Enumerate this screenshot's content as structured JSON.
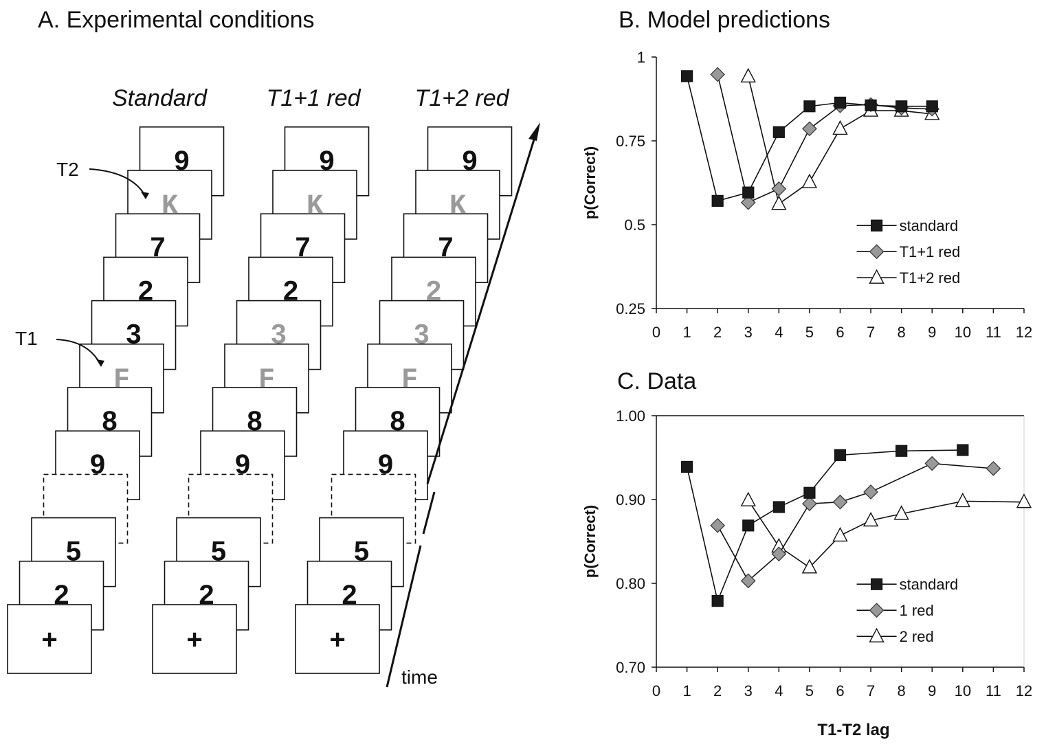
{
  "panelA": {
    "title": "A. Experimental conditions",
    "conditions": [
      "Standard",
      "T1+1 red",
      "T1+2 red"
    ],
    "t1_label": "T1",
    "t2_label": "T2",
    "time_label": "time",
    "fixation": "+",
    "stream_standard": [
      {
        "ch": "9",
        "c": "#111111"
      },
      {
        "ch": "K",
        "c": "#9a9a9a"
      },
      {
        "ch": "7",
        "c": "#111111"
      },
      {
        "ch": "2",
        "c": "#111111"
      },
      {
        "ch": "3",
        "c": "#111111"
      },
      {
        "ch": "F",
        "c": "#9a9a9a"
      },
      {
        "ch": "8",
        "c": "#111111"
      },
      {
        "ch": "9",
        "c": "#111111"
      },
      {
        "ch": "",
        "c": "#111111"
      },
      {
        "ch": "5",
        "c": "#111111"
      },
      {
        "ch": "2",
        "c": "#111111"
      }
    ],
    "stream_red1": [
      {
        "ch": "9",
        "c": "#111111"
      },
      {
        "ch": "K",
        "c": "#9a9a9a"
      },
      {
        "ch": "7",
        "c": "#111111"
      },
      {
        "ch": "2",
        "c": "#111111"
      },
      {
        "ch": "3",
        "c": "#9a9a9a"
      },
      {
        "ch": "F",
        "c": "#9a9a9a"
      },
      {
        "ch": "8",
        "c": "#111111"
      },
      {
        "ch": "9",
        "c": "#111111"
      },
      {
        "ch": "",
        "c": "#111111"
      },
      {
        "ch": "5",
        "c": "#111111"
      },
      {
        "ch": "2",
        "c": "#111111"
      }
    ],
    "stream_red2": [
      {
        "ch": "9",
        "c": "#111111"
      },
      {
        "ch": "K",
        "c": "#9a9a9a"
      },
      {
        "ch": "7",
        "c": "#111111"
      },
      {
        "ch": "2",
        "c": "#9a9a9a"
      },
      {
        "ch": "3",
        "c": "#9a9a9a"
      },
      {
        "ch": "F",
        "c": "#9a9a9a"
      },
      {
        "ch": "8",
        "c": "#111111"
      },
      {
        "ch": "9",
        "c": "#111111"
      },
      {
        "ch": "",
        "c": "#111111"
      },
      {
        "ch": "5",
        "c": "#111111"
      },
      {
        "ch": "2",
        "c": "#111111"
      }
    ]
  },
  "chart_data": [
    {
      "type": "line",
      "title": "B. Model predictions",
      "xlabel": "",
      "ylabel": "p(Correct)",
      "xlim": [
        0,
        12
      ],
      "ylim": [
        0.25,
        1
      ],
      "xticks": [
        "0",
        "1",
        "2",
        "3",
        "4",
        "5",
        "6",
        "7",
        "8",
        "9",
        "10",
        "11",
        "12"
      ],
      "yticks": [
        "0.25",
        "0.5",
        "0.75",
        "1"
      ],
      "ytick_values": [
        0.25,
        0.5,
        0.75,
        1
      ],
      "legend_position": "bottom-right",
      "series": [
        {
          "name": "standard",
          "marker": "square",
          "fill": "#1a1a1a",
          "x": [
            1,
            2,
            3,
            4,
            5,
            6,
            7,
            8,
            9
          ],
          "y": [
            0.943,
            0.571,
            0.596,
            0.776,
            0.853,
            0.864,
            0.856,
            0.853,
            0.853
          ]
        },
        {
          "name": "T1+1 red",
          "marker": "diamond",
          "fill": "#999999",
          "x": [
            2,
            3,
            4,
            5,
            6,
            7,
            8,
            9
          ],
          "y": [
            0.948,
            0.566,
            0.607,
            0.786,
            0.855,
            0.858,
            0.848,
            0.845
          ]
        },
        {
          "name": "T1+2 red",
          "marker": "triangle",
          "fill": "#ffffff",
          "x": [
            3,
            4,
            5,
            6,
            7,
            8,
            9
          ],
          "y": [
            0.942,
            0.562,
            0.627,
            0.786,
            0.84,
            0.84,
            0.83
          ]
        }
      ]
    },
    {
      "type": "line",
      "title": "C. Data",
      "xlabel": "T1-T2 lag",
      "ylabel": "p(Correct)",
      "xlim": [
        0,
        12
      ],
      "ylim": [
        0.7,
        1.0
      ],
      "xticks": [
        "0",
        "1",
        "2",
        "3",
        "4",
        "5",
        "6",
        "7",
        "8",
        "9",
        "10",
        "11",
        "12"
      ],
      "yticks": [
        "0.70",
        "0.80",
        "0.90",
        "1.00"
      ],
      "ytick_values": [
        0.7,
        0.8,
        0.9,
        1.0
      ],
      "legend_position": "bottom-right",
      "series": [
        {
          "name": "standard",
          "marker": "square",
          "fill": "#1a1a1a",
          "x": [
            1,
            2,
            3,
            4,
            5,
            6,
            8,
            10
          ],
          "y": [
            0.939,
            0.779,
            0.869,
            0.891,
            0.908,
            0.953,
            0.958,
            0.959
          ]
        },
        {
          "name": "1 red",
          "marker": "diamond",
          "fill": "#999999",
          "x": [
            2,
            3,
            4,
            5,
            6,
            7,
            9,
            11
          ],
          "y": [
            0.869,
            0.803,
            0.835,
            0.895,
            0.897,
            0.909,
            0.943,
            0.937
          ]
        },
        {
          "name": "2 red",
          "marker": "triangle",
          "fill": "#ffffff",
          "x": [
            3,
            4,
            5,
            6,
            7,
            8,
            10,
            12
          ],
          "y": [
            0.899,
            0.844,
            0.819,
            0.857,
            0.875,
            0.883,
            0.898,
            0.897
          ]
        }
      ]
    }
  ]
}
